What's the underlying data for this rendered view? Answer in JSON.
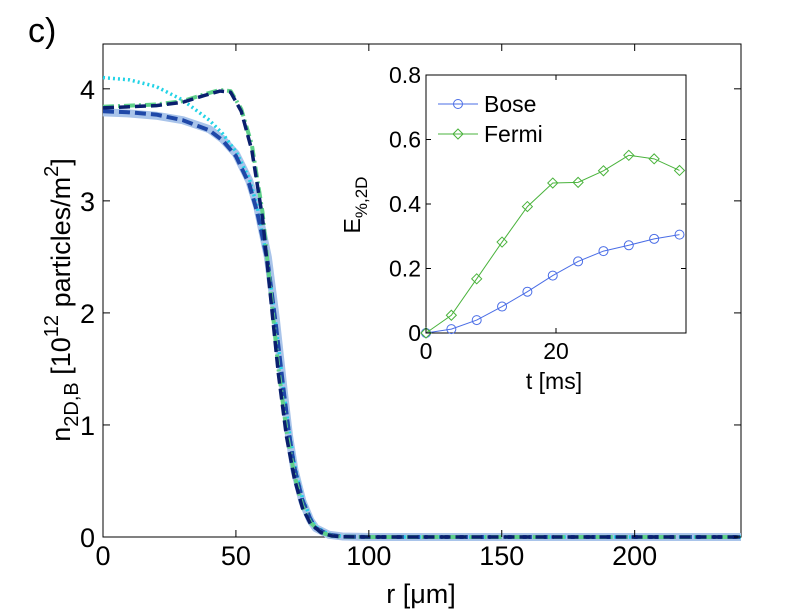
{
  "panel_label": "c)",
  "chart_data": [
    {
      "type": "line",
      "name": "main-density-profiles",
      "xlabel_prefix": "r [",
      "xlabel_unit": "μm",
      "xlabel_suffix": "]",
      "ylabel_main": "n",
      "ylabel_sub": "2D,B",
      "ylabel_mid": " [10",
      "ylabel_sup": "12",
      "ylabel_tail": " particles/m",
      "ylabel_sup2": "2",
      "ylabel_end": "]",
      "xlim": [
        0,
        240
      ],
      "ylim": [
        0,
        4.4
      ],
      "xticks": [
        0,
        50,
        100,
        150,
        200
      ],
      "yticks": [
        0,
        1,
        2,
        3,
        4
      ],
      "xtick_labels": [
        "0",
        "50",
        "100",
        "150",
        "200"
      ],
      "ytick_labels": [
        "0",
        "1",
        "2",
        "3",
        "4"
      ],
      "series": [
        {
          "name": "light-blue-solid",
          "color": "#a9c4ea",
          "style": "solid",
          "x": [
            0,
            10,
            20,
            30,
            40,
            45,
            50,
            55,
            58,
            62,
            65,
            68,
            70,
            72,
            75,
            78,
            80,
            85,
            90,
            100,
            240
          ],
          "y": [
            3.79,
            3.78,
            3.76,
            3.72,
            3.64,
            3.55,
            3.42,
            3.18,
            2.95,
            2.5,
            1.95,
            1.3,
            0.9,
            0.6,
            0.32,
            0.15,
            0.08,
            0.02,
            0.005,
            0,
            0
          ]
        },
        {
          "name": "cyan-dotted",
          "color": "#22d3e6",
          "style": "dotted",
          "x": [
            0,
            10,
            20,
            30,
            40,
            45,
            50,
            55,
            58,
            62,
            65,
            68,
            70,
            72,
            75,
            78,
            80,
            85,
            90,
            100,
            240
          ],
          "y": [
            4.1,
            4.08,
            4.02,
            3.9,
            3.72,
            3.6,
            3.44,
            3.2,
            2.95,
            2.45,
            1.9,
            1.3,
            0.95,
            0.65,
            0.35,
            0.17,
            0.09,
            0.025,
            0.005,
            0,
            0
          ]
        },
        {
          "name": "mid-blue-dashed",
          "color": "#1f48a8",
          "style": "dashed",
          "x": [
            0,
            10,
            20,
            30,
            40,
            45,
            50,
            55,
            58,
            62,
            65,
            68,
            70,
            72,
            75,
            78,
            80,
            85,
            90,
            100,
            240
          ],
          "y": [
            3.8,
            3.79,
            3.77,
            3.72,
            3.63,
            3.54,
            3.4,
            3.15,
            2.9,
            2.45,
            1.9,
            1.3,
            0.92,
            0.62,
            0.33,
            0.16,
            0.08,
            0.02,
            0.005,
            0,
            0
          ]
        },
        {
          "name": "green-dashdot",
          "color": "#5fd08a",
          "style": "dashdot",
          "x": [
            0,
            10,
            20,
            30,
            38,
            44,
            48,
            52,
            56,
            60,
            63,
            66,
            69,
            72,
            75,
            78,
            82,
            86,
            90,
            100,
            240
          ],
          "y": [
            3.84,
            3.85,
            3.86,
            3.89,
            3.95,
            3.99,
            3.98,
            3.82,
            3.5,
            2.9,
            2.2,
            1.5,
            0.95,
            0.55,
            0.28,
            0.13,
            0.04,
            0.01,
            0.002,
            0,
            0
          ]
        },
        {
          "name": "navy-dashed",
          "color": "#0a1f6e",
          "style": "dashed",
          "x": [
            0,
            10,
            20,
            30,
            38,
            44,
            48,
            52,
            56,
            60,
            63,
            66,
            69,
            72,
            75,
            78,
            82,
            86,
            90,
            100,
            240
          ],
          "y": [
            3.83,
            3.84,
            3.85,
            3.88,
            3.94,
            3.98,
            3.97,
            3.8,
            3.45,
            2.85,
            2.15,
            1.45,
            0.9,
            0.52,
            0.26,
            0.12,
            0.04,
            0.01,
            0.002,
            0,
            0
          ]
        }
      ]
    },
    {
      "type": "line",
      "name": "inset-energy",
      "xlabel": "t [ms]",
      "ylabel_main": "E",
      "ylabel_sub": "%,2D",
      "xlim": [
        0,
        40
      ],
      "ylim": [
        0,
        0.8
      ],
      "xticks": [
        0,
        20
      ],
      "yticks": [
        0,
        0.2,
        0.4,
        0.6,
        0.8
      ],
      "xtick_labels": [
        "0",
        "20"
      ],
      "ytick_labels": [
        "0",
        "0.2",
        "0.4",
        "0.6",
        "0.8"
      ],
      "legend_position": "top-left",
      "series": [
        {
          "name": "Bose",
          "color": "#4a6de6",
          "marker": "circle",
          "x": [
            0,
            3.9,
            7.8,
            11.7,
            15.6,
            19.5,
            23.4,
            27.3,
            31.2,
            35.1,
            39
          ],
          "y": [
            0,
            0.012,
            0.04,
            0.082,
            0.128,
            0.178,
            0.222,
            0.254,
            0.272,
            0.292,
            0.305
          ]
        },
        {
          "name": "Fermi",
          "color": "#4ab33c",
          "marker": "diamond",
          "x": [
            0,
            3.9,
            7.8,
            11.7,
            15.6,
            19.5,
            23.4,
            27.3,
            31.2,
            35.1,
            39
          ],
          "y": [
            0,
            0.055,
            0.168,
            0.282,
            0.392,
            0.465,
            0.467,
            0.503,
            0.551,
            0.54,
            0.504
          ]
        }
      ]
    }
  ]
}
